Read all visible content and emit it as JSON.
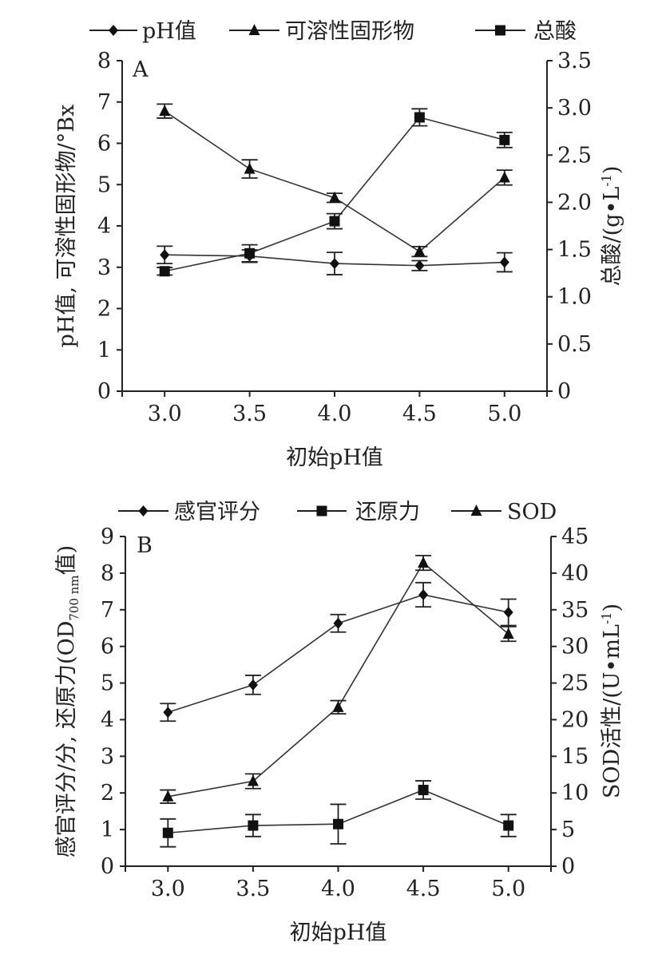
{
  "chart_data": [
    {
      "type": "line",
      "panel_label": "A",
      "xlabel": "初始pH值",
      "ylabel": "pH值, 可溶性固形物/°Bx",
      "ylabel_right": "总酸/(g•L-1)",
      "ylabel_right_parts": {
        "main": "总酸/(g•L",
        "sup": "-1",
        "close": ")"
      },
      "x": [
        3.0,
        3.5,
        4.0,
        4.5,
        5.0
      ],
      "x_tick_labels": [
        "3.0",
        "3.5",
        "4.0",
        "4.5",
        "5.0"
      ],
      "xlim": [
        2.75,
        5.25
      ],
      "ylim": [
        0,
        8
      ],
      "y_ticks": [
        0,
        1,
        2,
        3,
        4,
        5,
        6,
        7,
        8
      ],
      "y_tick_labels": [
        "0",
        "1",
        "2",
        "3",
        "4",
        "5",
        "6",
        "7",
        "8"
      ],
      "ylim_right": [
        0,
        3.5
      ],
      "y_ticks_right": [
        0,
        0.5,
        1.0,
        1.5,
        2.0,
        2.5,
        3.0,
        3.5
      ],
      "y_tick_labels_right": [
        "0",
        "0.5",
        "1.0",
        "1.5",
        "2.0",
        "2.5",
        "3.0",
        "3.5"
      ],
      "legend_position": "top",
      "series": [
        {
          "name": "pH值",
          "marker": "diamond",
          "axis": "left",
          "values": [
            3.3,
            3.27,
            3.09,
            3.04,
            3.12
          ],
          "errors": [
            0.21,
            0.15,
            0.27,
            0.12,
            0.23
          ]
        },
        {
          "name": "可溶性固形物",
          "marker": "triangle",
          "axis": "left",
          "values": [
            6.78,
            5.38,
            4.68,
            3.38,
            5.17
          ],
          "errors": [
            0.17,
            0.22,
            0.11,
            0.12,
            0.18
          ]
        },
        {
          "name": "总酸",
          "marker": "square",
          "axis": "right",
          "values": [
            1.27,
            1.46,
            1.8,
            2.9,
            2.66
          ],
          "errors": [
            0.04,
            0.09,
            0.08,
            0.09,
            0.08
          ]
        }
      ]
    },
    {
      "type": "line",
      "panel_label": "B",
      "xlabel": "初始pH值",
      "ylabel": "感官评分/分, 还原力(OD700 nm值)",
      "ylabel_parts": {
        "main": "感官评分/分, 还原力(OD",
        "sub": "700 nm",
        "close": "值)"
      },
      "ylabel_right": "SOD活性/(U•mL-1)",
      "ylabel_right_parts": {
        "main": "SOD活性/(U•mL",
        "sup": "-1",
        "close": ")"
      },
      "x": [
        3.0,
        3.5,
        4.0,
        4.5,
        5.0
      ],
      "x_tick_labels": [
        "3.0",
        "3.5",
        "4.0",
        "4.5",
        "5.0"
      ],
      "xlim": [
        2.75,
        5.25
      ],
      "ylim": [
        0,
        9
      ],
      "y_ticks": [
        0,
        1,
        2,
        3,
        4,
        5,
        6,
        7,
        8,
        9
      ],
      "y_tick_labels": [
        "0",
        "1",
        "2",
        "3",
        "4",
        "5",
        "6",
        "7",
        "8",
        "9"
      ],
      "ylim_right": [
        0,
        45
      ],
      "y_ticks_right": [
        0,
        5,
        10,
        15,
        20,
        25,
        30,
        35,
        40,
        45
      ],
      "y_tick_labels_right": [
        "0",
        "5",
        "10",
        "15",
        "20",
        "25",
        "30",
        "35",
        "40",
        "45"
      ],
      "legend_position": "top",
      "series": [
        {
          "name": "感官评分",
          "marker": "diamond",
          "axis": "left",
          "values": [
            4.2,
            4.95,
            6.63,
            7.41,
            6.93
          ],
          "errors": [
            0.24,
            0.26,
            0.24,
            0.33,
            0.36
          ]
        },
        {
          "name": "还原力",
          "marker": "square",
          "axis": "left",
          "values": [
            0.91,
            1.11,
            1.15,
            2.08,
            1.11
          ],
          "errors": [
            0.38,
            0.3,
            0.54,
            0.25,
            0.3
          ]
        },
        {
          "name": "SOD",
          "marker": "triangle",
          "axis": "right",
          "values": [
            9.5,
            11.6,
            21.7,
            41.4,
            31.7
          ],
          "errors": [
            0.9,
            1.0,
            0.9,
            1.0,
            1.0
          ]
        }
      ]
    }
  ]
}
